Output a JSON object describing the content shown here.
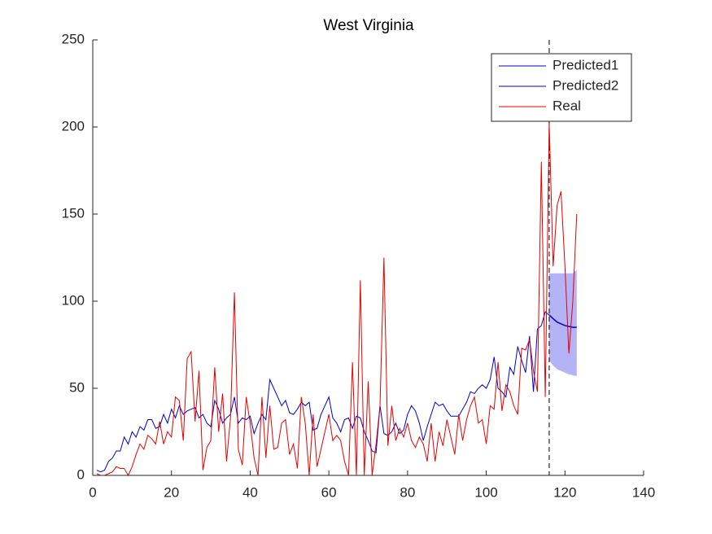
{
  "chart_data": {
    "type": "line",
    "title": "West Virginia",
    "xlim": [
      0,
      140
    ],
    "xticks": [
      0,
      20,
      40,
      60,
      80,
      100,
      120,
      140
    ],
    "ylim": [
      0,
      250
    ],
    "yticks": [
      0,
      50,
      100,
      150,
      200,
      250
    ],
    "legend": "upper right",
    "vline": 116,
    "band": {
      "color": "#b3b3f5",
      "x": [
        116,
        117,
        118,
        119,
        120,
        121,
        122,
        123
      ],
      "lower": [
        66,
        63,
        61,
        60,
        59,
        58,
        57.5,
        57
      ],
      "upper": [
        116,
        116,
        116,
        116,
        116,
        116,
        116,
        118
      ]
    },
    "series": [
      {
        "name": "Predicted1",
        "color": "#0000cc",
        "x": [
          1,
          2,
          3,
          4,
          5,
          6,
          7,
          8,
          9,
          10,
          11,
          12,
          13,
          14,
          15,
          16,
          17,
          18,
          19,
          20,
          21,
          22,
          23,
          24,
          25,
          26,
          27,
          28,
          29,
          30,
          31,
          32,
          33,
          34,
          35,
          36,
          37,
          38,
          39,
          40,
          41,
          42,
          43,
          44,
          45,
          46,
          47,
          48,
          49,
          50,
          51,
          52,
          53,
          54,
          55,
          56,
          57,
          58,
          59,
          60,
          61,
          62,
          63,
          64,
          65,
          66,
          67,
          68,
          69,
          70,
          71,
          72,
          73,
          74,
          75,
          76,
          77,
          78,
          79,
          80,
          81,
          82,
          83,
          84,
          85,
          86,
          87,
          88,
          89,
          90,
          91,
          92,
          93,
          94,
          95,
          96,
          97,
          98,
          99,
          100,
          101,
          102,
          103,
          104,
          105,
          106,
          107,
          108,
          109,
          110,
          111,
          112,
          113,
          114,
          115,
          116
        ],
        "values": [
          3,
          2,
          3,
          8,
          10,
          14,
          14,
          22,
          18,
          25,
          22,
          28,
          26,
          32,
          32,
          27,
          28,
          35,
          30,
          38,
          33,
          40,
          35,
          37,
          38,
          39,
          33,
          35,
          30,
          28,
          43,
          38,
          30,
          33,
          35,
          45,
          30,
          33,
          32,
          34,
          24,
          30,
          35,
          32,
          55,
          50,
          45,
          40,
          43,
          36,
          35,
          38,
          42,
          40,
          42,
          26,
          27,
          35,
          40,
          45,
          33,
          30,
          25,
          32,
          33,
          27,
          34,
          33,
          25,
          20,
          14,
          13,
          40,
          24,
          23,
          25,
          30,
          24,
          26,
          35,
          40,
          37,
          30,
          20,
          28,
          35,
          42,
          40,
          41,
          37,
          34,
          34,
          34,
          38,
          42,
          48,
          47,
          50,
          52,
          50,
          55,
          68,
          50,
          48,
          45,
          62,
          58,
          74,
          66,
          59,
          80,
          48,
          84,
          86,
          94,
          92
        ]
      },
      {
        "name": "Predicted2",
        "color": "#0000cc",
        "x": [
          116,
          117,
          118,
          119,
          120,
          121,
          122,
          123
        ],
        "values": [
          92,
          90,
          88,
          87,
          86,
          85.5,
          85,
          85
        ]
      },
      {
        "name": "Real",
        "color": "#e60000",
        "x": [
          1,
          2,
          3,
          4,
          5,
          6,
          7,
          8,
          9,
          10,
          11,
          12,
          13,
          14,
          15,
          16,
          17,
          18,
          19,
          20,
          21,
          22,
          23,
          24,
          25,
          26,
          27,
          28,
          29,
          30,
          31,
          32,
          33,
          34,
          35,
          36,
          37,
          38,
          39,
          40,
          41,
          42,
          43,
          44,
          45,
          46,
          47,
          48,
          49,
          50,
          51,
          52,
          53,
          54,
          55,
          56,
          57,
          58,
          59,
          60,
          61,
          62,
          63,
          64,
          65,
          66,
          67,
          68,
          69,
          70,
          71,
          72,
          73,
          74,
          75,
          76,
          77,
          78,
          79,
          80,
          81,
          82,
          83,
          84,
          85,
          86,
          87,
          88,
          89,
          90,
          91,
          92,
          93,
          94,
          95,
          96,
          97,
          98,
          99,
          100,
          101,
          102,
          103,
          104,
          105,
          106,
          107,
          108,
          109,
          110,
          111,
          112,
          113,
          114,
          115,
          116,
          117,
          118,
          119,
          120,
          121,
          122,
          123
        ],
        "values": [
          1,
          0,
          0,
          1,
          2,
          5,
          4,
          4,
          0,
          5,
          12,
          18,
          15,
          23,
          21,
          18,
          31,
          18,
          25,
          22,
          45,
          43,
          20,
          67,
          71,
          31,
          60,
          3,
          16,
          20,
          62,
          25,
          47,
          8,
          33,
          105,
          15,
          6,
          45,
          30,
          10,
          0,
          45,
          10,
          40,
          15,
          16,
          30,
          32,
          12,
          18,
          4,
          45,
          30,
          0,
          35,
          5,
          15,
          25,
          35,
          20,
          23,
          20,
          8,
          0,
          65,
          0,
          112,
          0,
          54,
          0,
          18,
          40,
          125,
          17,
          40,
          20,
          27,
          22,
          30,
          20,
          16,
          22,
          18,
          8,
          30,
          8,
          25,
          17,
          32,
          22,
          12,
          35,
          20,
          32,
          40,
          45,
          30,
          32,
          18,
          40,
          38,
          65,
          37,
          52,
          48,
          40,
          35,
          73,
          72,
          78,
          60,
          48,
          180,
          45,
          202,
          120,
          155,
          163,
          120,
          70,
          100,
          150
        ]
      }
    ]
  }
}
